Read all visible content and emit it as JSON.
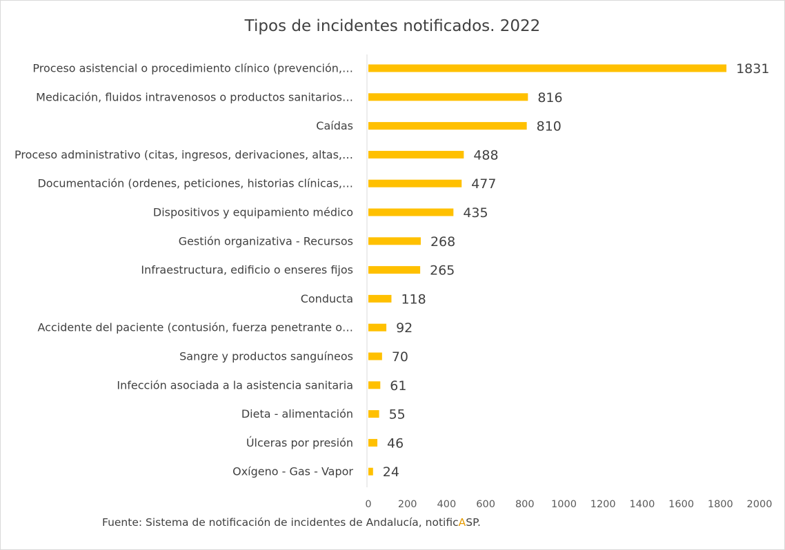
{
  "chart_data": {
    "type": "bar",
    "orientation": "horizontal",
    "title": "Tipos de incidentes notificados. 2022",
    "categories": [
      "Proceso asistencial o procedimiento clínico (prevención,…",
      "Medicación, fluidos intravenosos o productos sanitarios…",
      "Caídas",
      "Proceso administrativo (citas, ingresos, derivaciones, altas,…",
      "Documentación (ordenes, peticiones, historias clínicas,…",
      "Dispositivos y equipamiento médico",
      "Gestión organizativa - Recursos",
      "Infraestructura, edificio o enseres fijos",
      "Conducta",
      "Accidente del paciente (contusión, fuerza penetrante o…",
      "Sangre y productos sanguíneos",
      "Infección asociada a la asistencia sanitaria",
      "Dieta - alimentación",
      "Úlceras por presión",
      "Oxígeno - Gas - Vapor"
    ],
    "values": [
      1831,
      816,
      810,
      488,
      477,
      435,
      268,
      265,
      118,
      92,
      70,
      61,
      55,
      46,
      24
    ],
    "xlim": [
      0,
      2000
    ],
    "xticks": [
      "0",
      "200",
      "400",
      "600",
      "800",
      "1000",
      "1200",
      "1400",
      "1600",
      "1800",
      "2000"
    ],
    "grid": false,
    "legend": "none",
    "bar_color": "#FFC000"
  },
  "source_prefix": "Fuente: Sistema de notificación de incidentes  de Andalucía, notific",
  "source_highlight": "A",
  "source_suffix": "SP.",
  "colors": {
    "text": "#404040",
    "axis": "#d9d9d9",
    "highlight": "#E59A00"
  }
}
